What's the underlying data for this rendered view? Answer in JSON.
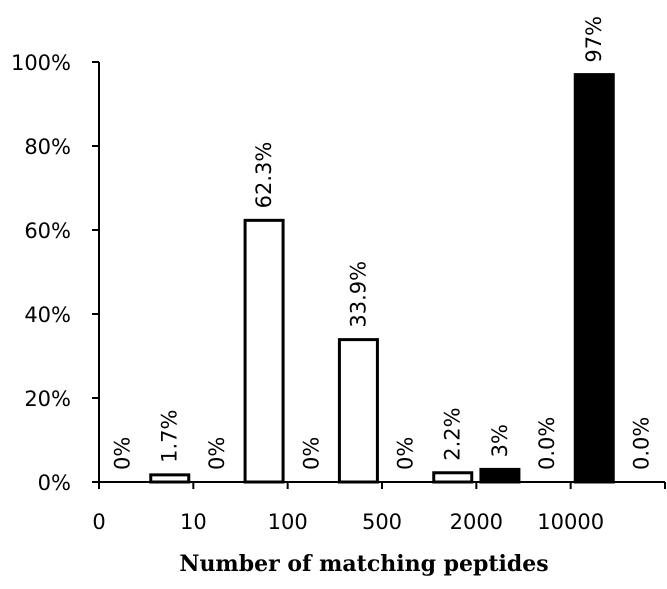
{
  "chart_data": {
    "type": "bar",
    "xlabel": "Number of matching peptides",
    "ylabel": "",
    "ylim": [
      0,
      100
    ],
    "yticks": [
      "0%",
      "20%",
      "40%",
      "60%",
      "80%",
      "100%"
    ],
    "ytick_values": [
      0,
      20,
      40,
      60,
      80,
      100
    ],
    "xtick_labels": [
      "0",
      "10",
      "100",
      "500",
      "2000",
      "10000"
    ],
    "grid": false,
    "legend": "none",
    "groups": [
      {
        "bars": [
          {
            "value": 0,
            "label": "0%",
            "fill": "#ffffff"
          },
          {
            "value": 1.7,
            "label": "1.7%",
            "fill": "#ffffff"
          }
        ]
      },
      {
        "bars": [
          {
            "value": 0,
            "label": "0%",
            "fill": "#ffffff"
          },
          {
            "value": 62.3,
            "label": "62.3%",
            "fill": "#ffffff"
          }
        ]
      },
      {
        "bars": [
          {
            "value": 0,
            "label": "0%",
            "fill": "#ffffff"
          },
          {
            "value": 33.9,
            "label": "33.9%",
            "fill": "#ffffff"
          }
        ]
      },
      {
        "bars": [
          {
            "value": 0,
            "label": "0%",
            "fill": "#ffffff"
          },
          {
            "value": 2.2,
            "label": "2.2%",
            "fill": "#ffffff"
          }
        ]
      },
      {
        "bars": [
          {
            "value": 3,
            "label": "3%",
            "fill": "#000000"
          },
          {
            "value": 0.0,
            "label": "0.0%",
            "fill": "#000000"
          }
        ]
      },
      {
        "bars": [
          {
            "value": 97,
            "label": "97%",
            "fill": "#000000"
          },
          {
            "value": 0.0,
            "label": "0.0%",
            "fill": "#000000"
          }
        ]
      }
    ]
  }
}
